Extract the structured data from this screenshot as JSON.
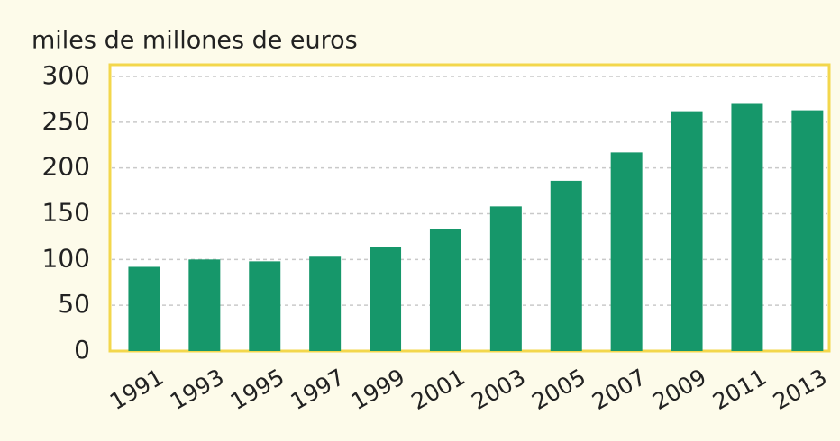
{
  "chart_data": {
    "type": "bar",
    "title": "miles de millones de euros",
    "categories": [
      "1991",
      "1993",
      "1995",
      "1997",
      "1999",
      "2001",
      "2003",
      "2005",
      "2007",
      "2009",
      "2011",
      "2013"
    ],
    "values": [
      92,
      100,
      98,
      104,
      114,
      133,
      158,
      186,
      217,
      262,
      270,
      263
    ],
    "color": "#16976a",
    "ylim": [
      0,
      300
    ],
    "yticks": [
      0,
      50,
      100,
      150,
      200,
      250,
      300
    ],
    "grid": true
  }
}
